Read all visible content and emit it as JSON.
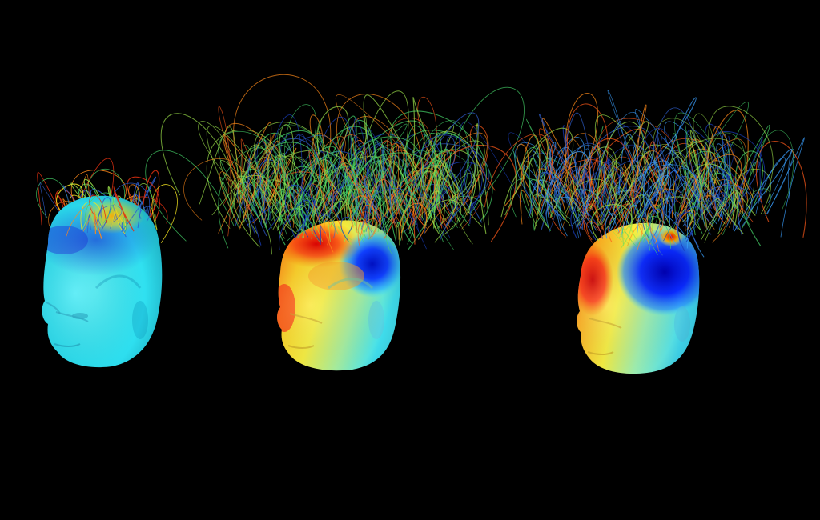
{
  "scene": {
    "background": "#000000",
    "colormap": [
      "#00008b",
      "#0000ff",
      "#0080ff",
      "#00ffff",
      "#80ff80",
      "#ffff00",
      "#ff8000",
      "#ff0000",
      "#8b0000"
    ],
    "line_colors": [
      "#2f5fd0",
      "#3aa0ff",
      "#46d46a",
      "#9be04a",
      "#ff8a1a",
      "#ff5a1a",
      "#e03010",
      "#1a3fbf"
    ],
    "panels": [
      {
        "name": "head-left",
        "skin_base": "#2fe0f0",
        "hot_level": 0.25,
        "cold_level": 0.35
      },
      {
        "name": "head-middle",
        "skin_base": "#ffe83a",
        "hot_level": 0.8,
        "cold_level": 0.75
      },
      {
        "name": "head-right",
        "skin_base": "#ffe040",
        "hot_level": 0.85,
        "cold_level": 0.95
      }
    ]
  }
}
